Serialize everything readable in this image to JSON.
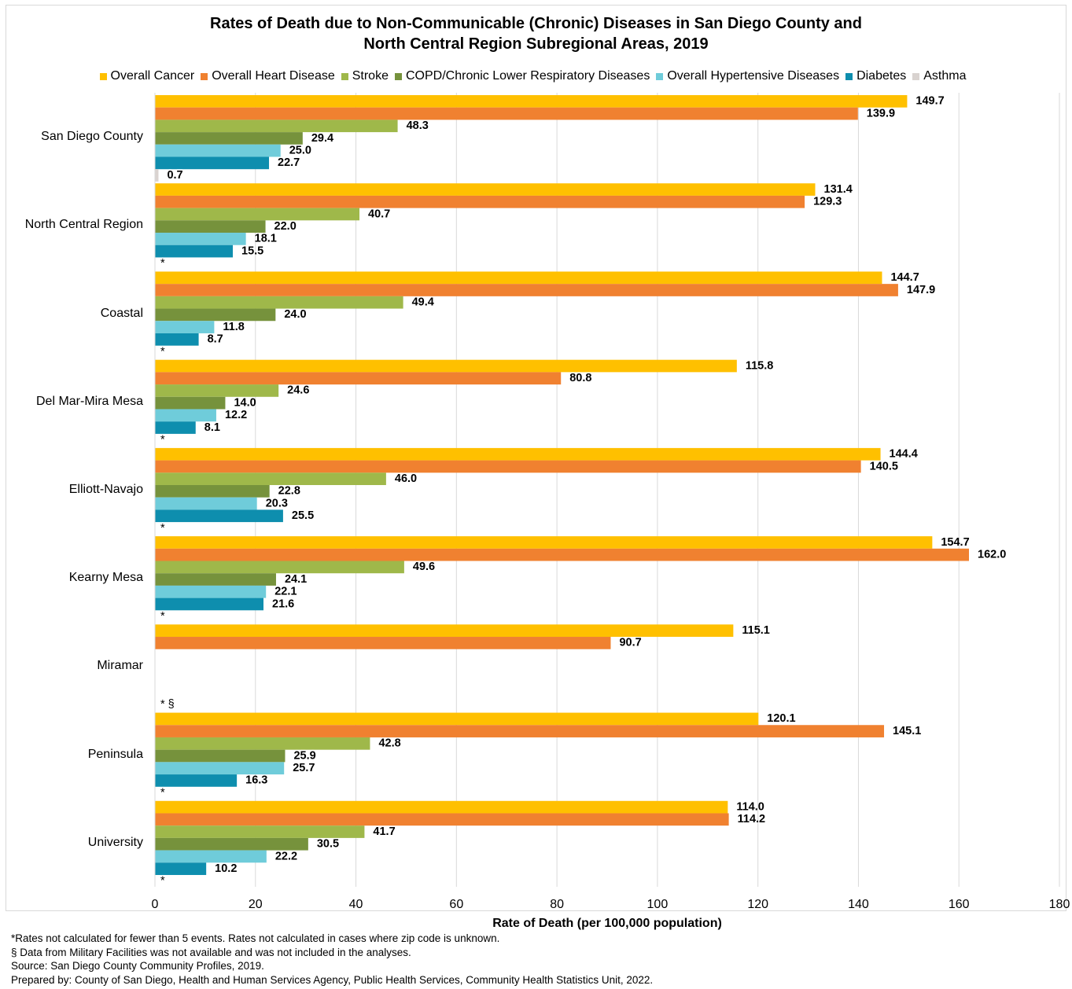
{
  "chart_data": {
    "type": "bar",
    "orientation": "horizontal",
    "title": [
      "Rates of Death due to Non-Communicable (Chronic) Diseases in San Diego County and",
      "North Central Region Subregional Areas, 2019"
    ],
    "xlabel": "Rate of Death (per 100,000 population)",
    "xlim": [
      0,
      180
    ],
    "xticks": [
      "0",
      "20",
      "40",
      "60",
      "80",
      "100",
      "120",
      "140",
      "160",
      "180"
    ],
    "grid": "vertical",
    "legend_position": "top",
    "categories": [
      "San Diego County",
      "North Central Region",
      "Coastal",
      "Del Mar-Mira Mesa",
      "Elliott-Navajo",
      "Kearny Mesa",
      "Miramar",
      "Peninsula",
      "University"
    ],
    "series": [
      {
        "name": "Overall Cancer",
        "color": "#FFC000",
        "values": [
          149.7,
          131.4,
          144.7,
          115.8,
          144.4,
          154.7,
          115.1,
          120.1,
          114.0
        ],
        "labels": [
          "149.7",
          "131.4",
          "144.7",
          "115.8",
          "144.4",
          "154.7",
          "115.1",
          "120.1",
          "114.0"
        ]
      },
      {
        "name": "Overall Heart Disease",
        "color": "#F08130",
        "values": [
          139.9,
          129.3,
          147.9,
          80.8,
          140.5,
          162.0,
          90.7,
          145.1,
          114.2
        ],
        "labels": [
          "139.9",
          "129.3",
          "147.9",
          "80.8",
          "140.5",
          "162.0",
          "90.7",
          "145.1",
          "114.2"
        ]
      },
      {
        "name": "Stroke",
        "color": "#9FB84A",
        "values": [
          48.3,
          40.7,
          49.4,
          24.6,
          46.0,
          49.6,
          null,
          42.8,
          41.7
        ],
        "labels": [
          "48.3",
          "40.7",
          "49.4",
          "24.6",
          "46.0",
          "49.6",
          null,
          "42.8",
          "41.7"
        ]
      },
      {
        "name": "COPD/Chronic Lower Respiratory Diseases",
        "color": "#76923C",
        "values": [
          29.4,
          22.0,
          24.0,
          14.0,
          22.8,
          24.1,
          null,
          25.9,
          30.5
        ],
        "labels": [
          "29.4",
          "22.0",
          "24.0",
          "14.0",
          "22.8",
          "24.1",
          null,
          "25.9",
          "30.5"
        ]
      },
      {
        "name": "Overall Hypertensive Diseases",
        "color": "#6FCCDA",
        "values": [
          25.0,
          18.1,
          11.8,
          12.2,
          20.3,
          22.1,
          null,
          25.7,
          22.2
        ],
        "labels": [
          "25.0",
          "18.1",
          "11.8",
          "12.2",
          "20.3",
          "22.1",
          null,
          "25.7",
          "22.2"
        ]
      },
      {
        "name": "Diabetes",
        "color": "#0E8EAE",
        "values": [
          22.7,
          15.5,
          8.7,
          8.1,
          25.5,
          21.6,
          null,
          16.3,
          10.2
        ],
        "labels": [
          "22.7",
          "15.5",
          "8.7",
          "8.1",
          "25.5",
          "21.6",
          null,
          "16.3",
          "10.2"
        ]
      },
      {
        "name": "Asthma",
        "color": "#D9D3D0",
        "values": [
          0.7,
          null,
          null,
          null,
          null,
          null,
          null,
          null,
          null
        ],
        "labels": [
          "0.7",
          "*",
          "*",
          "*",
          "*",
          "*",
          "* §",
          "*",
          "*"
        ]
      }
    ]
  },
  "footnotes": [
    "*Rates not calculated for fewer than 5 events. Rates not calculated in cases where zip code is unknown.",
    "§ Data from Military Facilities was not available and was not included in the analyses.",
    "Source: San Diego County Community Profiles, 2019.",
    "Prepared by: County of San Diego, Health and Human Services Agency, Public Health Services, Community Health Statistics Unit, 2022."
  ]
}
